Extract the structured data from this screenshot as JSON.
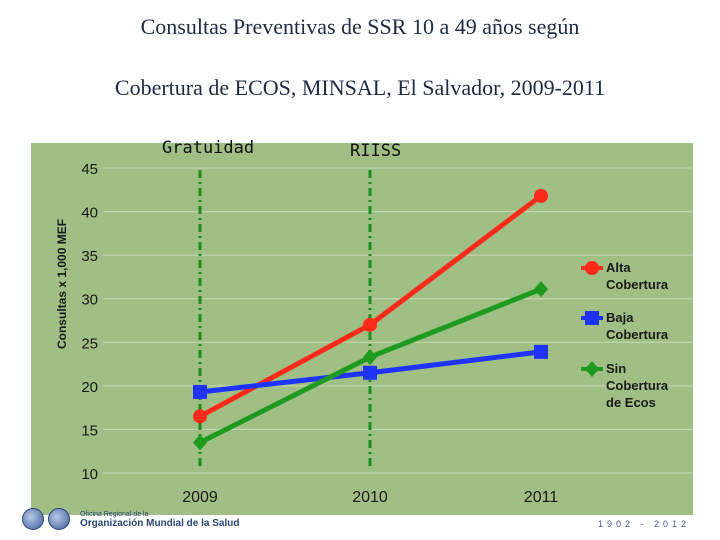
{
  "title": {
    "line1": "Consultas  Preventivas de SSR 10 a 49 años según",
    "line2": "Cobertura de ECOS, MINSAL, El Salvador, 2009-2011"
  },
  "markers": {
    "gratuidad": "Gratuidad",
    "riiss": "RIISS"
  },
  "footer": {
    "org_line1": "Oficina Regional de la",
    "org_line2": "Organización Mundial de la Salud",
    "years": "1902 - 2012"
  },
  "colors": {
    "plot_bg": "#9fbf85",
    "alta": "#ff2a1a",
    "baja": "#1f33ff",
    "sin": "#1e9a1e",
    "marker_line": "#1e8c1e"
  },
  "chart_data": {
    "type": "line",
    "title": "",
    "xlabel": "",
    "ylabel": "Consultas x 1,000 MEF",
    "categories": [
      "2009",
      "2010",
      "2011"
    ],
    "ylim": [
      10,
      45
    ],
    "yticks": [
      10,
      15,
      20,
      25,
      30,
      35,
      40,
      45
    ],
    "vertical_markers": [
      {
        "at": "2009",
        "label": "Gratuidad"
      },
      {
        "at": "2010",
        "label": "RIISS"
      }
    ],
    "legend_position": "right",
    "series": [
      {
        "name": "Alta Cobertura",
        "legend_lines": [
          "Alta",
          "Cobertura"
        ],
        "marker": "circle",
        "color": "#ff2a1a",
        "values": [
          16.5,
          27.0,
          41.8
        ]
      },
      {
        "name": "Baja Cobertura",
        "legend_lines": [
          "Baja",
          "Cobertura"
        ],
        "marker": "square",
        "color": "#1f33ff",
        "values": [
          19.3,
          21.5,
          23.9
        ]
      },
      {
        "name": "Sin Cobertura de Ecos",
        "legend_lines": [
          "Sin",
          "Cobertura",
          "de Ecos"
        ],
        "marker": "diamond",
        "color": "#1e9a1e",
        "values": [
          13.5,
          23.3,
          31.1
        ]
      }
    ]
  }
}
